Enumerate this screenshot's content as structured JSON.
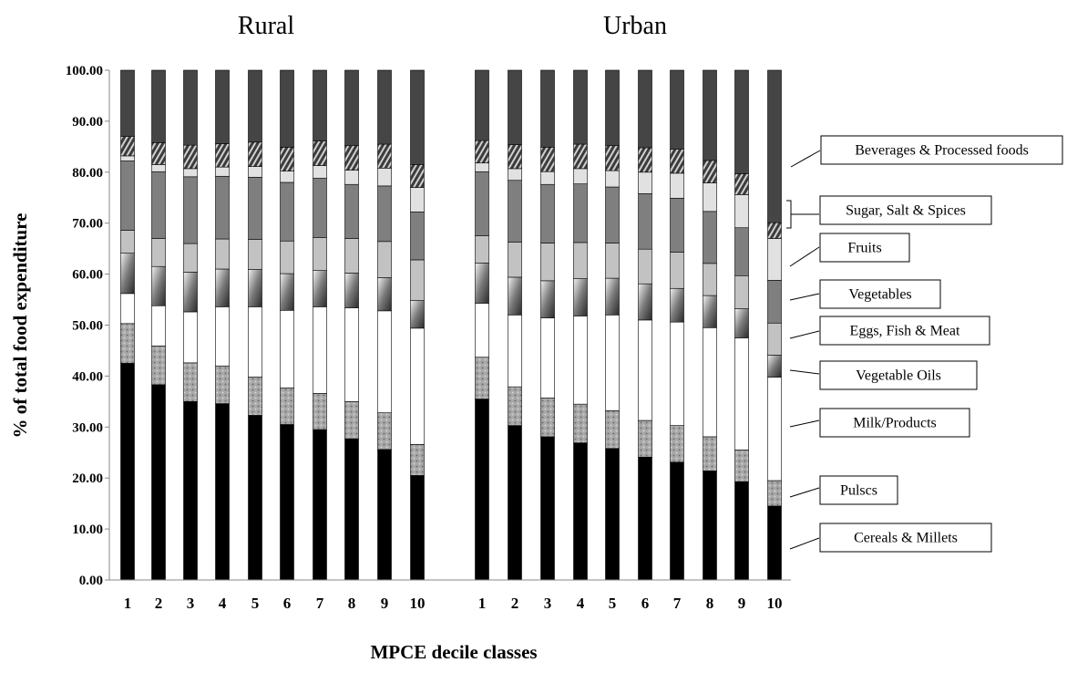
{
  "chart_data": {
    "type": "bar",
    "stacked": true,
    "panels": [
      {
        "title": "Rural",
        "categories": [
          "1",
          "2",
          "3",
          "4",
          "5",
          "6",
          "7",
          "8",
          "9",
          "10"
        ],
        "series": [
          {
            "name": "Cereals & Millets",
            "values": [
              42.5,
              38.3,
              35.0,
              34.6,
              32.3,
              30.5,
              29.5,
              27.7,
              25.6,
              20.5
            ]
          },
          {
            "name": "Pulscs",
            "values": [
              7.8,
              7.6,
              7.6,
              7.4,
              7.5,
              7.2,
              7.1,
              7.3,
              7.2,
              6.1
            ]
          },
          {
            "name": "Milk/Products",
            "values": [
              5.9,
              7.9,
              10.0,
              11.6,
              13.8,
              15.2,
              17.0,
              18.4,
              20.0,
              22.8
            ]
          },
          {
            "name": "Vegetable Oils",
            "values": [
              7.9,
              7.7,
              7.8,
              7.4,
              7.3,
              7.2,
              7.1,
              6.8,
              6.5,
              5.4
            ]
          },
          {
            "name": "Eggs, Fish & Meat",
            "values": [
              4.5,
              5.5,
              5.6,
              5.9,
              5.9,
              6.4,
              6.5,
              6.8,
              7.1,
              8.0
            ]
          },
          {
            "name": "Vegetables",
            "values": [
              13.6,
              13.1,
              13.1,
              12.3,
              12.2,
              11.5,
              11.6,
              10.6,
              10.9,
              9.4
            ]
          },
          {
            "name": "Fruits",
            "values": [
              1.0,
              1.4,
              1.6,
              1.8,
              2.1,
              2.2,
              2.5,
              2.8,
              3.5,
              4.8
            ]
          },
          {
            "name": "Sugar, Salt & Spices",
            "values": [
              3.8,
              4.3,
              4.6,
              4.6,
              4.8,
              4.7,
              4.8,
              4.8,
              4.7,
              4.5
            ]
          },
          {
            "name": "Beverages & Processed  foods",
            "values": [
              13.0,
              14.2,
              14.7,
              14.4,
              14.1,
              15.1,
              13.9,
              14.8,
              14.5,
              18.5
            ]
          }
        ]
      },
      {
        "title": "Urban",
        "categories": [
          "1",
          "2",
          "3",
          "4",
          "5",
          "6",
          "7",
          "8",
          "9",
          "10"
        ],
        "series": [
          {
            "name": "Cereals & Millets",
            "values": [
              35.5,
              30.3,
              28.1,
              26.9,
              25.8,
              24.1,
              23.1,
              21.4,
              19.3,
              14.5
            ]
          },
          {
            "name": "Pulscs",
            "values": [
              8.2,
              7.6,
              7.6,
              7.6,
              7.4,
              7.2,
              7.2,
              6.7,
              6.2,
              5.0
            ]
          },
          {
            "name": "Milk/Products",
            "values": [
              10.6,
              14.1,
              15.7,
              17.3,
              18.8,
              19.7,
              20.3,
              21.4,
              22.0,
              20.3
            ]
          },
          {
            "name": "Vegetable Oils",
            "values": [
              7.9,
              7.4,
              7.3,
              7.3,
              7.2,
              7.1,
              6.6,
              6.3,
              5.7,
              4.3
            ]
          },
          {
            "name": "Eggs, Fish & Meat",
            "values": [
              5.3,
              6.9,
              7.4,
              7.1,
              6.9,
              6.8,
              7.1,
              6.3,
              6.5,
              6.3
            ]
          },
          {
            "name": "Vegetables",
            "values": [
              12.6,
              12.1,
              11.5,
              11.5,
              11.0,
              10.9,
              10.6,
              10.2,
              9.4,
              8.4
            ]
          },
          {
            "name": "Fruits",
            "values": [
              1.7,
              2.3,
              2.5,
              3.0,
              3.2,
              4.2,
              4.9,
              5.6,
              6.5,
              8.2
            ]
          },
          {
            "name": "Sugar, Salt & Spices",
            "values": [
              4.4,
              4.7,
              4.8,
              4.8,
              4.9,
              4.8,
              4.7,
              4.4,
              4.1,
              3.1
            ]
          },
          {
            "name": "Beverages & Processed  foods",
            "values": [
              13.8,
              14.6,
              15.1,
              14.5,
              14.8,
              15.2,
              15.5,
              17.7,
              20.3,
              29.9
            ]
          }
        ]
      }
    ],
    "xlabel": "MPCE decile classes",
    "ylabel": "% of total food expenditure",
    "ylim": [
      0,
      100
    ],
    "yticks": [
      "0.00",
      "10.00",
      "20.00",
      "30.00",
      "40.00",
      "50.00",
      "60.00",
      "70.00",
      "80.00",
      "90.00",
      "100.00"
    ],
    "grid": false,
    "legend_placement": "right",
    "series_fills": [
      "#000000",
      "#9a9a9a",
      "#ffffff",
      "#8a8a8a",
      "#c2c2c2",
      "#7f7f7f",
      "#e1e1e1",
      "#5a5a5a",
      "#454545"
    ]
  }
}
